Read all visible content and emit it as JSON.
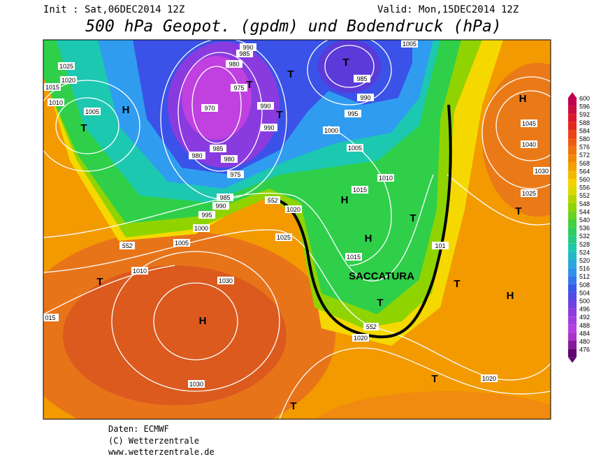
{
  "header": {
    "init": "Init : Sat,06DEC2014 12Z",
    "valid": "Valid: Mon,15DEC2014 12Z",
    "title": "500 hPa Geopot. (gpdm) und Bodendruck (hPa)"
  },
  "legend": {
    "levels": [
      600,
      596,
      592,
      588,
      584,
      580,
      576,
      572,
      568,
      564,
      560,
      556,
      552,
      548,
      544,
      540,
      536,
      532,
      528,
      524,
      520,
      516,
      512,
      508,
      504,
      500,
      496,
      492,
      488,
      484,
      480,
      476
    ]
  },
  "map": {
    "isobar_labels": [
      "1025",
      "1020",
      "1015",
      "1010",
      "1005",
      "990",
      "985",
      "980",
      "975",
      "970",
      "990",
      "990",
      "980",
      "985",
      "980",
      "975",
      "985",
      "990",
      "995",
      "1000",
      "1005",
      "1010",
      "1030",
      "015",
      "1025",
      "1020",
      "1015",
      "1015",
      "1010",
      "1005",
      "1000",
      "995",
      "990",
      "985",
      "1005",
      "1030",
      "1020",
      "1020",
      "1045",
      "1040",
      "1030",
      "1025",
      "101"
    ],
    "centers": [
      "H",
      "T",
      "H",
      "H",
      "T",
      "T",
      "H",
      "T",
      "H",
      "T",
      "H",
      "T",
      "T",
      "T",
      "T",
      "T",
      "T",
      "T"
    ],
    "contour_labels": [
      "552",
      "552",
      "552"
    ],
    "annotation": "SACCATURA"
  },
  "footer": [
    "Daten: ECMWF",
    "(C) Wetterzentrale",
    "www.wetterzentrale.de"
  ]
}
